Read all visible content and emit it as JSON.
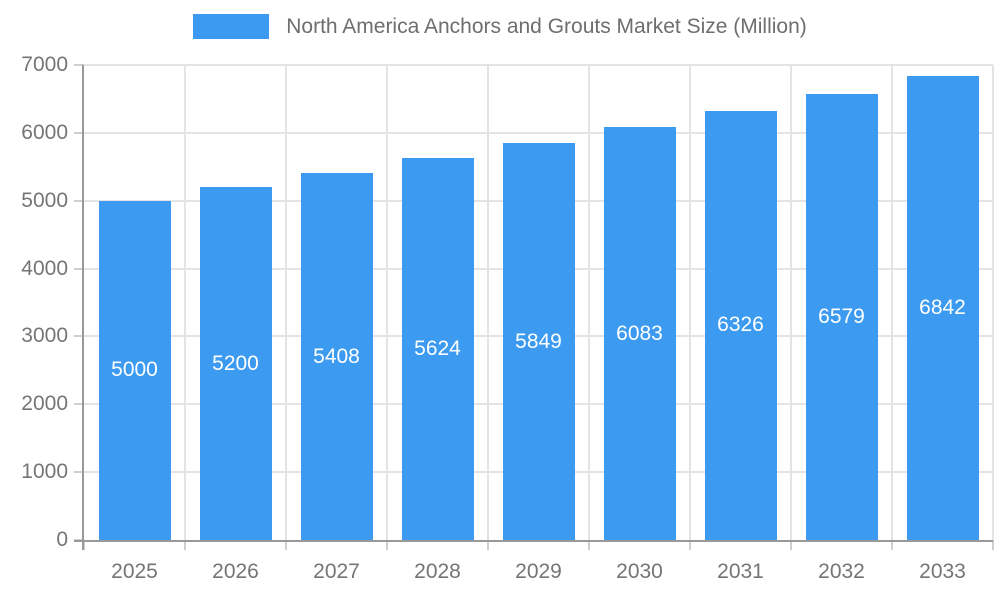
{
  "chart_data": {
    "type": "bar",
    "title": "North America Anchors and Grouts Market Size (Million)",
    "series_name": "North America Anchors and Grouts Market Size (Million)",
    "categories": [
      "2025",
      "2026",
      "2027",
      "2028",
      "2029",
      "2030",
      "2031",
      "2032",
      "2033"
    ],
    "values": [
      5000,
      5200,
      5408,
      5624,
      5849,
      6083,
      6326,
      6579,
      6842
    ],
    "data_labels": [
      "5000",
      "5200",
      "5408",
      "5624",
      "5849",
      "6083",
      "6326",
      "6579",
      "6842"
    ],
    "xlabel": "",
    "ylabel": "",
    "ylim": [
      0,
      7000
    ],
    "yticks": [
      0,
      1000,
      2000,
      3000,
      4000,
      5000,
      6000,
      7000
    ],
    "grid": true,
    "legend_position": "top-center",
    "colors": {
      "bar": "#3C9BF0",
      "bar_label": "#FFFFFF",
      "grid_line": "#E4E4E4",
      "axis_line": "#999999",
      "tick_mark": "#CFCFCF",
      "axis_text": "#757575",
      "legend_text": "#6E6E6E",
      "background": "#FFFFFF"
    }
  }
}
